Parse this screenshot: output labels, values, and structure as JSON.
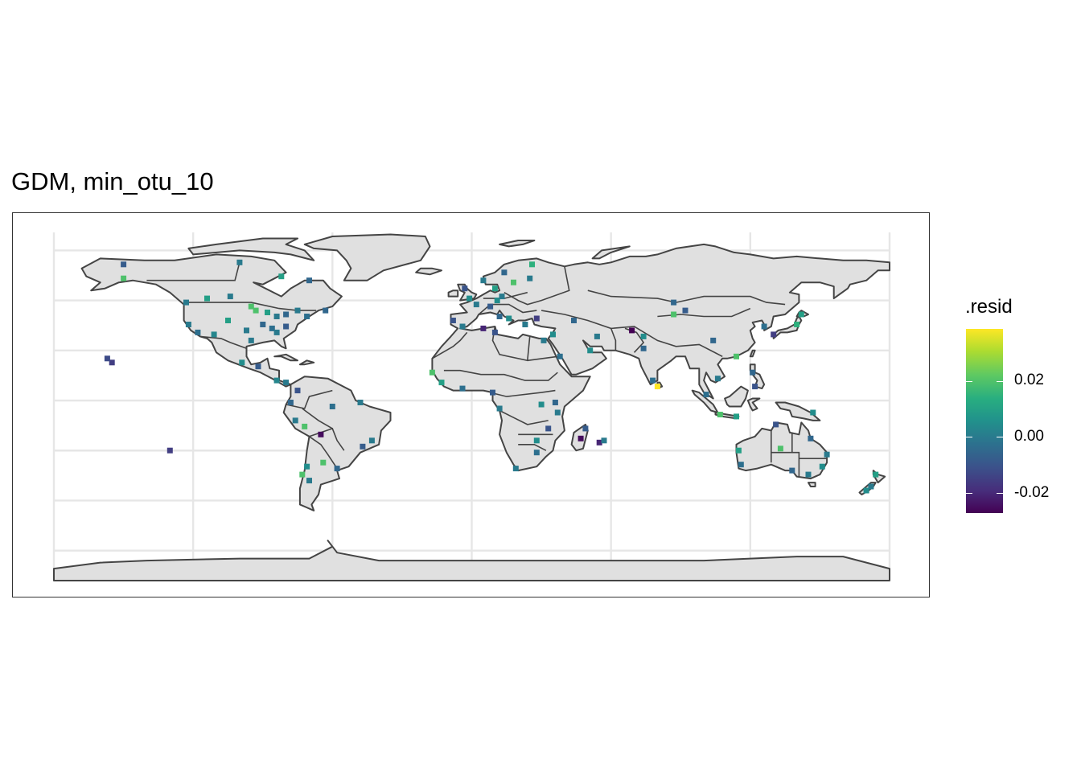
{
  "title": "GDM, min_otu_10",
  "legend": {
    "title": ".resid",
    "labels": [
      "0.02",
      "0.00",
      "-0.02"
    ],
    "values": [
      0.02,
      0.0,
      -0.02
    ],
    "range": [
      -0.027,
      0.039
    ],
    "colors": [
      "#440154",
      "#472d7b",
      "#3b528b",
      "#2c728e",
      "#21918c",
      "#28ae80",
      "#5ec962",
      "#addc30",
      "#fde725"
    ]
  },
  "map": {
    "projection": "equirectangular",
    "land_color": "#e0e0e0",
    "border_color": "#444444",
    "grid": true,
    "grid_color": "#e6e6e6"
  },
  "chart_data": {
    "type": "scatter",
    "title": "GDM, min_otu_10",
    "color_scale": "viridis",
    "color_label": ".resid",
    "color_range": [
      -0.027,
      0.039
    ],
    "points": [
      {
        "lon": -155,
        "lat": 19,
        "resid": -0.015
      },
      {
        "lon": -157,
        "lat": 21,
        "resid": -0.012
      },
      {
        "lon": -130,
        "lat": -25,
        "resid": -0.015
      },
      {
        "lon": -150,
        "lat": 61,
        "resid": 0.02
      },
      {
        "lon": -123,
        "lat": 49,
        "resid": 0.0
      },
      {
        "lon": -114,
        "lat": 51,
        "resid": 0.01
      },
      {
        "lon": -104,
        "lat": 52,
        "resid": 0.0
      },
      {
        "lon": -95,
        "lat": 47,
        "resid": 0.02
      },
      {
        "lon": -93,
        "lat": 45,
        "resid": 0.02
      },
      {
        "lon": -88,
        "lat": 44,
        "resid": 0.01
      },
      {
        "lon": -84,
        "lat": 42,
        "resid": 0.0
      },
      {
        "lon": -80,
        "lat": 43,
        "resid": -0.005
      },
      {
        "lon": -75,
        "lat": 45,
        "resid": 0.0
      },
      {
        "lon": -71,
        "lat": 42,
        "resid": -0.003
      },
      {
        "lon": -63,
        "lat": 45,
        "resid": -0.005
      },
      {
        "lon": -122,
        "lat": 38,
        "resid": 0.0
      },
      {
        "lon": -118,
        "lat": 34,
        "resid": -0.003
      },
      {
        "lon": -111,
        "lat": 33,
        "resid": 0.003
      },
      {
        "lon": -105,
        "lat": 40,
        "resid": 0.01
      },
      {
        "lon": -97,
        "lat": 35,
        "resid": 0.0
      },
      {
        "lon": -90,
        "lat": 38,
        "resid": -0.005
      },
      {
        "lon": -86,
        "lat": 36,
        "resid": -0.003
      },
      {
        "lon": -84,
        "lat": 34,
        "resid": 0.0
      },
      {
        "lon": -80,
        "lat": 37,
        "resid": -0.008
      },
      {
        "lon": -95,
        "lat": 30,
        "resid": 0.0
      },
      {
        "lon": -99,
        "lat": 19,
        "resid": 0.005
      },
      {
        "lon": -92,
        "lat": 17,
        "resid": -0.008
      },
      {
        "lon": -84,
        "lat": 10,
        "resid": 0.003
      },
      {
        "lon": -80,
        "lat": 9,
        "resid": 0.0
      },
      {
        "lon": -75,
        "lat": 5,
        "resid": -0.01
      },
      {
        "lon": -78,
        "lat": -1,
        "resid": -0.005
      },
      {
        "lon": -76,
        "lat": -10,
        "resid": 0.0
      },
      {
        "lon": -72,
        "lat": -13,
        "resid": 0.02
      },
      {
        "lon": -65,
        "lat": -17,
        "resid": -0.025
      },
      {
        "lon": -60,
        "lat": -3,
        "resid": -0.003
      },
      {
        "lon": -48,
        "lat": -1,
        "resid": 0.0
      },
      {
        "lon": -47,
        "lat": -23,
        "resid": -0.008
      },
      {
        "lon": -43,
        "lat": -20,
        "resid": 0.0
      },
      {
        "lon": -58,
        "lat": -34,
        "resid": -0.005
      },
      {
        "lon": -64,
        "lat": -31,
        "resid": 0.02
      },
      {
        "lon": -71,
        "lat": -33,
        "resid": 0.005
      },
      {
        "lon": -73,
        "lat": -37,
        "resid": 0.02
      },
      {
        "lon": -70,
        "lat": -40,
        "resid": 0.0
      },
      {
        "lon": -150,
        "lat": 68,
        "resid": -0.008
      },
      {
        "lon": -100,
        "lat": 69,
        "resid": 0.0
      },
      {
        "lon": -82,
        "lat": 62,
        "resid": 0.01
      },
      {
        "lon": -70,
        "lat": 60,
        "resid": -0.005
      },
      {
        "lon": -3,
        "lat": 56,
        "resid": -0.01
      },
      {
        "lon": -1,
        "lat": 51,
        "resid": 0.005
      },
      {
        "lon": 2,
        "lat": 48,
        "resid": 0.0
      },
      {
        "lon": 8,
        "lat": 47,
        "resid": -0.008
      },
      {
        "lon": 11,
        "lat": 50,
        "resid": 0.005
      },
      {
        "lon": 13,
        "lat": 52,
        "resid": 0.0
      },
      {
        "lon": 10,
        "lat": 56,
        "resid": 0.01
      },
      {
        "lon": 18,
        "lat": 59,
        "resid": 0.02
      },
      {
        "lon": 25,
        "lat": 61,
        "resid": 0.0
      },
      {
        "lon": 26,
        "lat": 68,
        "resid": 0.015
      },
      {
        "lon": 14,
        "lat": 64,
        "resid": -0.005
      },
      {
        "lon": 5,
        "lat": 60,
        "resid": 0.0
      },
      {
        "lon": -8,
        "lat": 40,
        "resid": -0.01
      },
      {
        "lon": -4,
        "lat": 37,
        "resid": 0.0
      },
      {
        "lon": 12,
        "lat": 42,
        "resid": -0.005
      },
      {
        "lon": 16,
        "lat": 41,
        "resid": 0.005
      },
      {
        "lon": 23,
        "lat": 38,
        "resid": 0.0
      },
      {
        "lon": 28,
        "lat": 41,
        "resid": -0.015
      },
      {
        "lon": 35,
        "lat": 33,
        "resid": 0.005
      },
      {
        "lon": 44,
        "lat": 40,
        "resid": -0.005
      },
      {
        "lon": 5,
        "lat": 36,
        "resid": -0.02
      },
      {
        "lon": 10,
        "lat": 34,
        "resid": -0.01
      },
      {
        "lon": 31,
        "lat": 30,
        "resid": 0.0
      },
      {
        "lon": 38,
        "lat": 22,
        "resid": -0.003
      },
      {
        "lon": 51,
        "lat": 25,
        "resid": 0.005
      },
      {
        "lon": 54,
        "lat": 32,
        "resid": 0.0
      },
      {
        "lon": 69,
        "lat": 35,
        "resid": -0.027
      },
      {
        "lon": 74,
        "lat": 32,
        "resid": 0.005
      },
      {
        "lon": 74,
        "lat": 26,
        "resid": -0.005
      },
      {
        "lon": 80,
        "lat": 7,
        "resid": 0.039
      },
      {
        "lon": 78,
        "lat": 10,
        "resid": -0.003
      },
      {
        "lon": 87,
        "lat": 43,
        "resid": 0.02
      },
      {
        "lon": 87,
        "lat": 49,
        "resid": -0.005
      },
      {
        "lon": 92,
        "lat": 45,
        "resid": -0.008
      },
      {
        "lon": 104,
        "lat": 30,
        "resid": -0.005
      },
      {
        "lon": 114,
        "lat": 22,
        "resid": 0.02
      },
      {
        "lon": 121,
        "lat": 14,
        "resid": -0.005
      },
      {
        "lon": 122,
        "lat": 7,
        "resid": -0.01
      },
      {
        "lon": 106,
        "lat": 11,
        "resid": 0.0
      },
      {
        "lon": 101,
        "lat": 3,
        "resid": -0.003
      },
      {
        "lon": 107,
        "lat": -7,
        "resid": 0.02
      },
      {
        "lon": 114,
        "lat": -8,
        "resid": 0.01
      },
      {
        "lon": 126,
        "lat": 37,
        "resid": -0.003
      },
      {
        "lon": 130,
        "lat": 33,
        "resid": -0.015
      },
      {
        "lon": 140,
        "lat": 38,
        "resid": 0.015
      },
      {
        "lon": 142,
        "lat": 43,
        "resid": 0.01
      },
      {
        "lon": 147,
        "lat": -6,
        "resid": 0.005
      },
      {
        "lon": 131,
        "lat": -12,
        "resid": -0.01
      },
      {
        "lon": 146,
        "lat": -19,
        "resid": -0.005
      },
      {
        "lon": 153,
        "lat": -27,
        "resid": 0.0
      },
      {
        "lon": 151,
        "lat": -33,
        "resid": 0.005
      },
      {
        "lon": 145,
        "lat": -37,
        "resid": 0.0
      },
      {
        "lon": 138,
        "lat": -35,
        "resid": -0.005
      },
      {
        "lon": 116,
        "lat": -32,
        "resid": -0.003
      },
      {
        "lon": 115,
        "lat": -25,
        "resid": 0.01
      },
      {
        "lon": 133,
        "lat": -24,
        "resid": 0.02
      },
      {
        "lon": 174,
        "lat": -37,
        "resid": 0.01
      },
      {
        "lon": 172,
        "lat": -43,
        "resid": 0.0
      },
      {
        "lon": 170,
        "lat": -45,
        "resid": 0.005
      },
      {
        "lon": -17,
        "lat": 14,
        "resid": 0.02
      },
      {
        "lon": -13,
        "lat": 9,
        "resid": 0.01
      },
      {
        "lon": -4,
        "lat": 6,
        "resid": -0.003
      },
      {
        "lon": 9,
        "lat": 4,
        "resid": -0.008
      },
      {
        "lon": 12,
        "lat": -4,
        "resid": 0.0
      },
      {
        "lon": 30,
        "lat": -2,
        "resid": 0.005
      },
      {
        "lon": 36,
        "lat": -1,
        "resid": -0.005
      },
      {
        "lon": 37,
        "lat": -6,
        "resid": 0.0
      },
      {
        "lon": 33,
        "lat": -14,
        "resid": -0.01
      },
      {
        "lon": 28,
        "lat": -20,
        "resid": 0.005
      },
      {
        "lon": 28,
        "lat": -26,
        "resid": -0.003
      },
      {
        "lon": 19,
        "lat": -34,
        "resid": 0.0
      },
      {
        "lon": 47,
        "lat": -19,
        "resid": -0.025
      },
      {
        "lon": 55,
        "lat": -21,
        "resid": -0.02
      },
      {
        "lon": 49,
        "lat": -14,
        "resid": -0.008
      },
      {
        "lon": 57,
        "lat": -20,
        "resid": 0.0
      }
    ]
  }
}
